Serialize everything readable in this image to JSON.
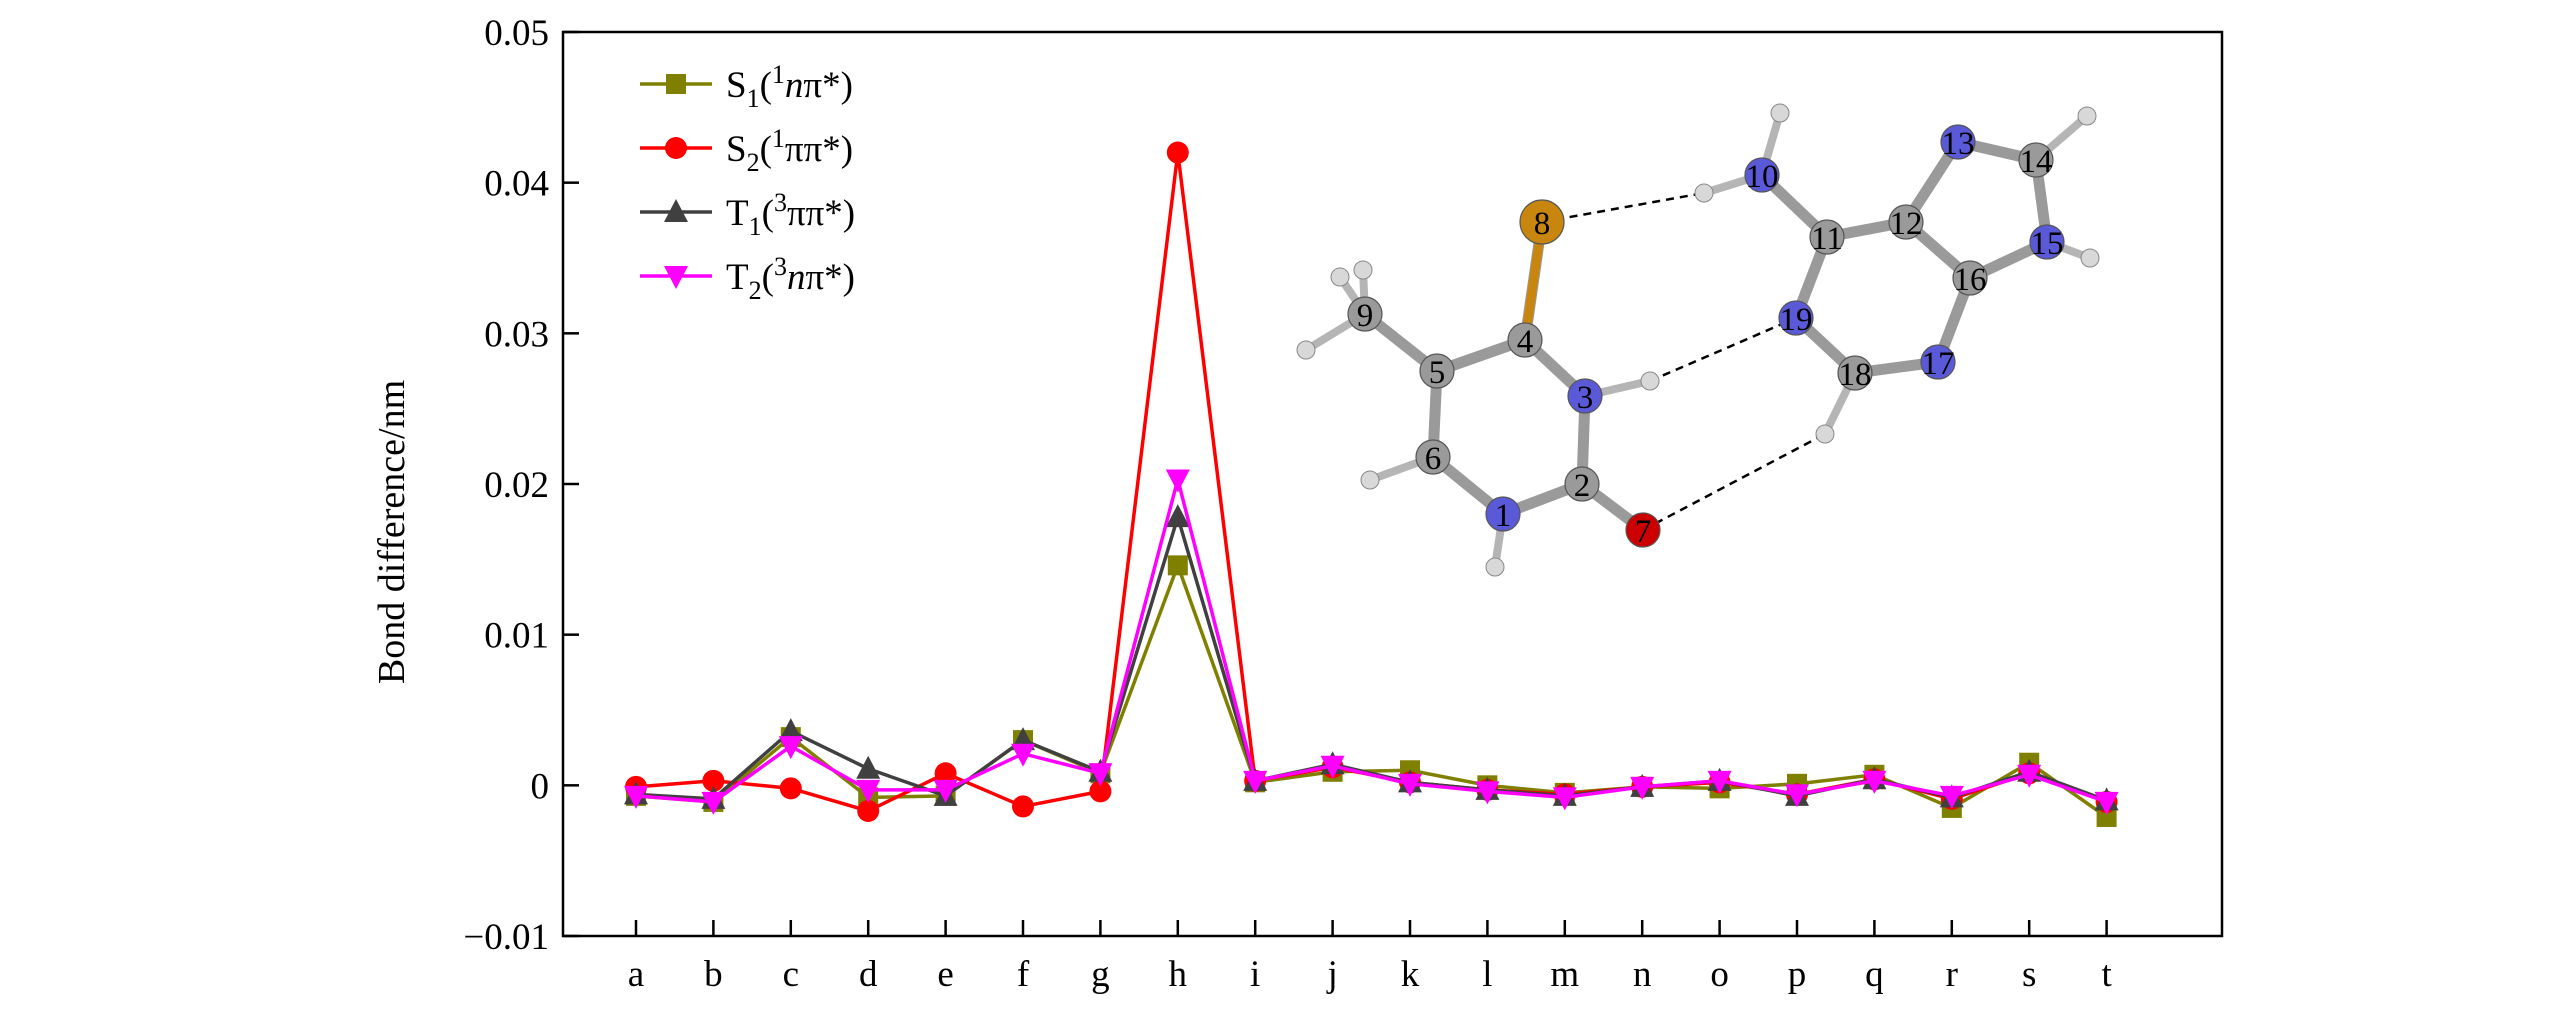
{
  "chart_data": {
    "type": "line",
    "title": "",
    "xlabel": "",
    "ylabel": "Bond difference/nm",
    "ylim": [
      -0.01,
      0.05
    ],
    "yticks": [
      "−0.01",
      "0",
      "0.01",
      "0.02",
      "0.03",
      "0.04",
      "0.05"
    ],
    "ytick_values": [
      -0.01,
      0,
      0.01,
      0.02,
      0.03,
      0.04,
      0.05
    ],
    "categories": [
      "a",
      "b",
      "c",
      "d",
      "e",
      "f",
      "g",
      "h",
      "i",
      "j",
      "k",
      "l",
      "m",
      "n",
      "o",
      "p",
      "q",
      "r",
      "s",
      "t"
    ],
    "grid": false,
    "legend_position": "top-left",
    "series": [
      {
        "name": "S1(1nπ*)",
        "legend": {
          "main": "S",
          "sub": "1",
          "open": "(",
          "sup": "1",
          "italic": "n",
          "rest": "π*)"
        },
        "color": "#808000",
        "marker": "square",
        "values": [
          -0.0007,
          -0.0011,
          0.0032,
          -0.0008,
          -0.0007,
          0.003,
          0.0008,
          0.0146,
          0.0002,
          0.0009,
          0.001,
          0.0,
          -0.0005,
          -0.0001,
          -0.0002,
          0.0001,
          0.0007,
          -0.0015,
          0.0015,
          -0.0021
        ]
      },
      {
        "name": "S2(1ππ*)",
        "legend": {
          "main": "S",
          "sub": "2",
          "open": "(",
          "sup": "1",
          "italic": "",
          "rest": "ππ*)"
        },
        "color": "#ff0000",
        "marker": "circle",
        "values": [
          -0.0001,
          0.0003,
          -0.0002,
          -0.0017,
          0.0008,
          -0.0014,
          -0.0004,
          0.042,
          0.0003,
          0.0012,
          0.0002,
          -0.0003,
          -0.0006,
          -0.0001,
          0.0002,
          -0.0006,
          0.0004,
          -0.0009,
          0.0008,
          -0.0011
        ]
      },
      {
        "name": "T1(3ππ*)",
        "legend": {
          "main": "T",
          "sub": "1",
          "open": "(",
          "sup": "3",
          "italic": "",
          "rest": "ππ*)"
        },
        "color": "#404040",
        "marker": "triangle-up",
        "values": [
          -0.0006,
          -0.0009,
          0.0036,
          0.0011,
          -0.0007,
          0.003,
          0.0009,
          0.0178,
          0.0003,
          0.0014,
          0.0002,
          -0.0003,
          -0.0007,
          -0.0001,
          0.0003,
          -0.0007,
          0.0004,
          -0.0008,
          0.0009,
          -0.001
        ]
      },
      {
        "name": "T2(3nπ*)",
        "legend": {
          "main": "T",
          "sub": "2",
          "open": "(",
          "sup": "3",
          "italic": "n",
          "rest": "π*)"
        },
        "color": "#ff00ff",
        "marker": "triangle-down",
        "values": [
          -0.0007,
          -0.0011,
          0.0026,
          -0.0003,
          -0.0003,
          0.0021,
          0.0008,
          0.0203,
          0.0003,
          0.0013,
          0.0001,
          -0.0004,
          -0.0008,
          -0.0001,
          0.0003,
          -0.0006,
          0.0003,
          -0.0007,
          0.0007,
          -0.0011
        ]
      }
    ],
    "inset": {
      "description": "molecular structure with hydrogen-bonded dimer",
      "atom_labels": [
        "1",
        "2",
        "3",
        "4",
        "5",
        "6",
        "7",
        "8",
        "9",
        "10",
        "11",
        "12",
        "13",
        "14",
        "15",
        "16",
        "17",
        "18",
        "19"
      ],
      "atom_colors": {
        "carbon": "#9a9a9a",
        "nitrogen": "#5a5ad8",
        "oxygen": "#cc0000",
        "sulfur": "#c8860f",
        "hydrogen": "#d8d8d8"
      }
    }
  }
}
